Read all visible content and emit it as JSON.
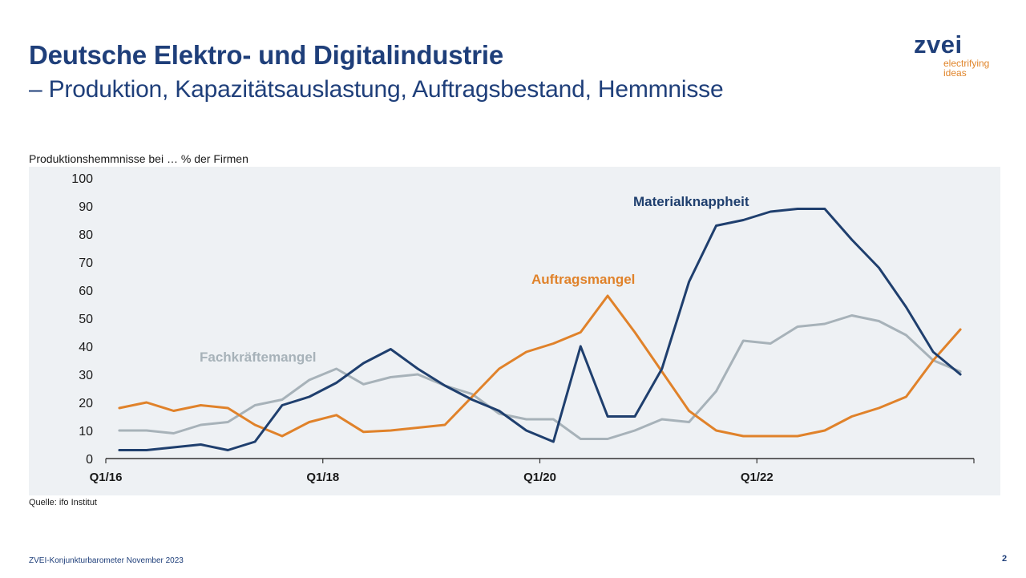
{
  "header": {
    "title": "Deutsche Elektro- und Digitalindustrie",
    "subtitle": "– Produktion, Kapazitätsauslastung, Auftragsbestand, Hemmnisse"
  },
  "logo": {
    "word": "zvei",
    "tagline_line1": "electrifying",
    "tagline_line2": "ideas"
  },
  "footer": {
    "source": "Quelle: ifo Institut",
    "left": "ZVEI-Konjunkturbarometer November 2023",
    "page_number": "2"
  },
  "chart_data": {
    "type": "line",
    "title": "Produktionshemmnisse bei … % der Firmen",
    "xlabel": "",
    "ylabel": "",
    "ylim": [
      0,
      100
    ],
    "yticks": [
      0,
      10,
      20,
      30,
      40,
      50,
      60,
      70,
      80,
      90,
      100
    ],
    "grid": true,
    "x": [
      "Q1/16",
      "Q2/16",
      "Q3/16",
      "Q4/16",
      "Q1/17",
      "Q2/17",
      "Q3/17",
      "Q4/17",
      "Q1/18",
      "Q2/18",
      "Q3/18",
      "Q4/18",
      "Q1/19",
      "Q2/19",
      "Q3/19",
      "Q4/19",
      "Q1/20",
      "Q2/20",
      "Q3/20",
      "Q4/20",
      "Q1/21",
      "Q2/21",
      "Q3/21",
      "Q4/21",
      "Q1/22",
      "Q2/22",
      "Q3/22",
      "Q4/22",
      "Q1/23",
      "Q2/23",
      "Q3/23",
      "Q4/23"
    ],
    "xtick_labels": [
      "Q1/16",
      "Q1/18",
      "Q1/20",
      "Q1/22"
    ],
    "series": [
      {
        "name": "Materialknappheit",
        "color": "#1f3f6e",
        "values": [
          3,
          3,
          4,
          5,
          3,
          6,
          19,
          22,
          27,
          34,
          39,
          32,
          26,
          21,
          17,
          10,
          6,
          40,
          15,
          15,
          32,
          63,
          83,
          85,
          88,
          89,
          89,
          78,
          68,
          54,
          38,
          30
        ]
      },
      {
        "name": "Auftragsmangel",
        "color": "#e0822a",
        "values": [
          18,
          20,
          17,
          19,
          18,
          12,
          8,
          13,
          15.5,
          9.5,
          10,
          11,
          12,
          22,
          32,
          38,
          41,
          45,
          58,
          45,
          31,
          17,
          10,
          8,
          8,
          8,
          10,
          15,
          18,
          22,
          35,
          46
        ]
      },
      {
        "name": "Fachkräftemangel",
        "color": "#a7b2b9",
        "values": [
          10,
          10,
          9,
          12,
          13,
          19,
          21,
          28,
          32,
          26.5,
          29,
          30,
          26,
          23,
          16,
          14,
          14,
          7,
          7,
          10,
          14,
          13,
          24,
          42,
          41,
          47,
          48,
          51,
          49,
          44,
          35,
          31
        ]
      }
    ],
    "annotations": [
      {
        "text": "Materialknappheit",
        "series": "Materialknappheit"
      },
      {
        "text": "Auftragsmangel",
        "series": "Auftragsmangel"
      },
      {
        "text": "Fachkräftemangel",
        "series": "Fachkräftemangel"
      }
    ]
  }
}
